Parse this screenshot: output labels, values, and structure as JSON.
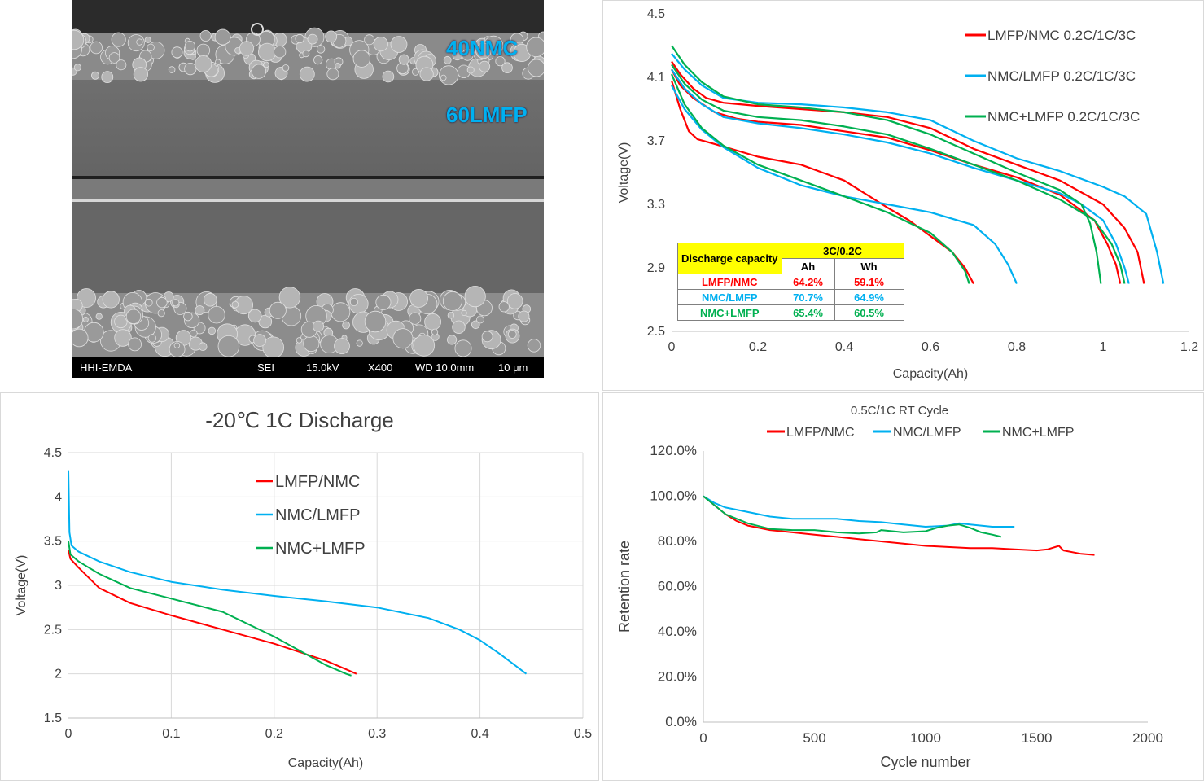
{
  "sem": {
    "label_top": "40NMC",
    "label_mid": "60LMFP",
    "footer": [
      "HHI-EMDA",
      "SEI",
      "15.0kV",
      "X400",
      "WD 10.0mm",
      "10 μm"
    ]
  },
  "colors": {
    "red": "#ff0000",
    "blue": "#00b0f0",
    "green": "#00b050"
  },
  "table": {
    "header": "Discharge capacity",
    "ratio": "3C/0.2C",
    "units": [
      "Ah",
      "Wh"
    ],
    "rows": [
      {
        "name": "LMFP/NMC",
        "ah": "64.2%",
        "wh": "59.1%",
        "color": "#ff0000"
      },
      {
        "name": "NMC/LMFP",
        "ah": "70.7%",
        "wh": "64.9%",
        "color": "#00b0f0"
      },
      {
        "name": "NMC+LMFP",
        "ah": "65.4%",
        "wh": "60.5%",
        "color": "#00b050"
      }
    ]
  },
  "chart_data": [
    {
      "type": "line",
      "title": "",
      "xlabel": "Capacity(Ah)",
      "ylabel": "Voltage(V)",
      "xlim": [
        0,
        1.2
      ],
      "ylim": [
        2.5,
        4.5
      ],
      "xticks": [
        "0",
        "0.2",
        "0.4",
        "0.6",
        "0.8",
        "1",
        "1.2"
      ],
      "yticks": [
        "2.5",
        "2.9",
        "3.3",
        "3.7",
        "4.1",
        "4.5"
      ],
      "grid": false,
      "legend": "top-right",
      "series": [
        {
          "name": "LMFP/NMC 0.2C/1C/3C",
          "color": "#ff0000",
          "curves": [
            {
              "x": [
                0,
                0.02,
                0.05,
                0.08,
                0.12,
                0.2,
                0.3,
                0.4,
                0.5,
                0.6,
                0.7,
                0.8,
                0.9,
                1.0,
                1.05,
                1.08,
                1.095
              ],
              "y": [
                4.2,
                4.12,
                4.03,
                3.97,
                3.94,
                3.92,
                3.9,
                3.88,
                3.85,
                3.78,
                3.65,
                3.55,
                3.45,
                3.3,
                3.15,
                3.0,
                2.8
              ]
            },
            {
              "x": [
                0,
                0.02,
                0.05,
                0.1,
                0.15,
                0.2,
                0.3,
                0.4,
                0.5,
                0.6,
                0.7,
                0.8,
                0.9,
                0.98,
                1.01,
                1.03,
                1.04
              ],
              "y": [
                4.15,
                4.05,
                3.97,
                3.88,
                3.84,
                3.82,
                3.8,
                3.76,
                3.72,
                3.64,
                3.55,
                3.47,
                3.36,
                3.2,
                3.05,
                2.92,
                2.8
              ]
            },
            {
              "x": [
                0,
                0.02,
                0.04,
                0.06,
                0.1,
                0.2,
                0.3,
                0.4,
                0.5,
                0.55,
                0.6,
                0.65,
                0.68,
                0.7
              ],
              "y": [
                4.08,
                3.9,
                3.76,
                3.71,
                3.68,
                3.6,
                3.55,
                3.45,
                3.28,
                3.2,
                3.1,
                3.0,
                2.9,
                2.8
              ]
            }
          ]
        },
        {
          "name": "NMC/LMFP 0.2C/1C/3C",
          "color": "#00b0f0",
          "curves": [
            {
              "x": [
                0,
                0.03,
                0.07,
                0.12,
                0.2,
                0.3,
                0.4,
                0.5,
                0.6,
                0.7,
                0.8,
                0.9,
                1.0,
                1.05,
                1.1,
                1.125,
                1.14
              ],
              "y": [
                4.25,
                4.15,
                4.05,
                3.97,
                3.94,
                3.93,
                3.91,
                3.88,
                3.83,
                3.7,
                3.59,
                3.51,
                3.41,
                3.35,
                3.24,
                3.0,
                2.8
              ]
            },
            {
              "x": [
                0,
                0.03,
                0.07,
                0.12,
                0.2,
                0.3,
                0.4,
                0.5,
                0.6,
                0.7,
                0.8,
                0.9,
                0.95,
                1.0,
                1.03,
                1.05,
                1.06
              ],
              "y": [
                4.15,
                4.03,
                3.93,
                3.85,
                3.81,
                3.78,
                3.74,
                3.69,
                3.62,
                3.53,
                3.45,
                3.37,
                3.3,
                3.2,
                3.05,
                2.9,
                2.8
              ]
            },
            {
              "x": [
                0,
                0.03,
                0.07,
                0.12,
                0.2,
                0.3,
                0.4,
                0.5,
                0.6,
                0.7,
                0.75,
                0.78,
                0.8
              ],
              "y": [
                4.05,
                3.9,
                3.77,
                3.66,
                3.53,
                3.42,
                3.35,
                3.3,
                3.25,
                3.17,
                3.05,
                2.92,
                2.8
              ]
            }
          ]
        },
        {
          "name": "NMC+LMFP 0.2C/1C/3C",
          "color": "#00b050",
          "curves": [
            {
              "x": [
                0,
                0.03,
                0.07,
                0.12,
                0.2,
                0.3,
                0.4,
                0.5,
                0.6,
                0.7,
                0.8,
                0.9,
                0.95,
                0.97,
                0.985,
                0.995
              ],
              "y": [
                4.3,
                4.18,
                4.07,
                3.98,
                3.93,
                3.91,
                3.88,
                3.83,
                3.74,
                3.62,
                3.5,
                3.39,
                3.3,
                3.18,
                3.0,
                2.8
              ]
            },
            {
              "x": [
                0,
                0.03,
                0.07,
                0.12,
                0.2,
                0.3,
                0.4,
                0.5,
                0.6,
                0.7,
                0.8,
                0.9,
                0.98,
                1.02,
                1.04,
                1.05
              ],
              "y": [
                4.18,
                4.06,
                3.96,
                3.89,
                3.85,
                3.83,
                3.79,
                3.74,
                3.65,
                3.55,
                3.45,
                3.33,
                3.2,
                3.05,
                2.92,
                2.8
              ]
            },
            {
              "x": [
                0,
                0.03,
                0.07,
                0.12,
                0.2,
                0.3,
                0.4,
                0.5,
                0.6,
                0.65,
                0.68,
                0.69
              ],
              "y": [
                4.12,
                3.93,
                3.78,
                3.67,
                3.55,
                3.45,
                3.35,
                3.25,
                3.12,
                3.0,
                2.88,
                2.8
              ]
            }
          ]
        }
      ]
    },
    {
      "type": "line",
      "title": "-20℃ 1C Discharge",
      "xlabel": "Capacity(Ah)",
      "ylabel": "Voltage(V)",
      "xlim": [
        0,
        0.5
      ],
      "ylim": [
        1.5,
        4.5
      ],
      "xticks": [
        "0",
        "0.1",
        "0.2",
        "0.3",
        "0.4",
        "0.5"
      ],
      "yticks": [
        "1.5",
        "2",
        "2.5",
        "3",
        "3.5",
        "4",
        "4.5"
      ],
      "grid": true,
      "legend": "center",
      "series": [
        {
          "name": "LMFP/NMC",
          "color": "#ff0000",
          "x": [
            0,
            0.002,
            0.01,
            0.03,
            0.06,
            0.1,
            0.15,
            0.2,
            0.25,
            0.27,
            0.28
          ],
          "y": [
            3.4,
            3.3,
            3.2,
            2.97,
            2.8,
            2.66,
            2.5,
            2.34,
            2.15,
            2.05,
            2.0
          ]
        },
        {
          "name": "NMC/LMFP",
          "color": "#00b0f0",
          "x": [
            0,
            0.001,
            0.003,
            0.01,
            0.03,
            0.06,
            0.1,
            0.15,
            0.2,
            0.25,
            0.3,
            0.35,
            0.38,
            0.4,
            0.42,
            0.445
          ],
          "y": [
            4.3,
            3.6,
            3.45,
            3.38,
            3.27,
            3.15,
            3.04,
            2.95,
            2.88,
            2.82,
            2.75,
            2.63,
            2.5,
            2.38,
            2.22,
            2.0
          ]
        },
        {
          "name": "NMC+LMFP",
          "color": "#00b050",
          "x": [
            0,
            0.002,
            0.01,
            0.03,
            0.06,
            0.1,
            0.15,
            0.2,
            0.25,
            0.27,
            0.275
          ],
          "y": [
            3.5,
            3.35,
            3.27,
            3.13,
            2.97,
            2.85,
            2.7,
            2.42,
            2.1,
            2.0,
            1.98
          ]
        }
      ]
    },
    {
      "type": "line",
      "title": "0.5C/1C RT Cycle",
      "xlabel": "Cycle number",
      "ylabel": "Retention rate",
      "xlim": [
        0,
        2000
      ],
      "ylim": [
        0,
        1.2
      ],
      "xticks": [
        "0",
        "500",
        "1000",
        "1500",
        "2000"
      ],
      "yticks": [
        "0.0%",
        "20.0%",
        "40.0%",
        "60.0%",
        "80.0%",
        "100.0%",
        "120.0%"
      ],
      "grid": false,
      "legend": "top",
      "series": [
        {
          "name": "LMFP/NMC",
          "color": "#ff0000",
          "x": [
            0,
            50,
            100,
            150,
            200,
            300,
            400,
            500,
            600,
            700,
            800,
            900,
            1000,
            1100,
            1200,
            1300,
            1400,
            1500,
            1550,
            1600,
            1620,
            1700,
            1760
          ],
          "y": [
            1.0,
            0.96,
            0.92,
            0.89,
            0.87,
            0.85,
            0.84,
            0.83,
            0.82,
            0.81,
            0.8,
            0.79,
            0.78,
            0.775,
            0.77,
            0.77,
            0.765,
            0.76,
            0.765,
            0.78,
            0.76,
            0.745,
            0.74
          ]
        },
        {
          "name": "NMC/LMFP",
          "color": "#00b0f0",
          "x": [
            0,
            50,
            100,
            200,
            300,
            400,
            500,
            600,
            700,
            800,
            900,
            1000,
            1100,
            1150,
            1200,
            1300,
            1400
          ],
          "y": [
            1.0,
            0.97,
            0.95,
            0.93,
            0.91,
            0.9,
            0.9,
            0.9,
            0.89,
            0.885,
            0.875,
            0.865,
            0.87,
            0.88,
            0.875,
            0.865,
            0.865
          ]
        },
        {
          "name": "NMC+LMFP",
          "color": "#00b050",
          "x": [
            0,
            50,
            100,
            200,
            300,
            400,
            500,
            600,
            700,
            780,
            800,
            900,
            1000,
            1050,
            1100,
            1150,
            1200,
            1250,
            1300,
            1340
          ],
          "y": [
            1.0,
            0.96,
            0.92,
            0.88,
            0.855,
            0.85,
            0.85,
            0.84,
            0.835,
            0.84,
            0.85,
            0.84,
            0.845,
            0.86,
            0.87,
            0.875,
            0.86,
            0.84,
            0.83,
            0.82
          ]
        }
      ]
    }
  ]
}
